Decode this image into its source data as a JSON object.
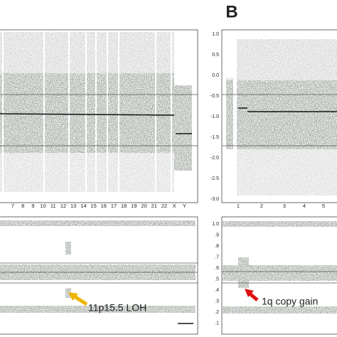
{
  "panel_label": "B",
  "top_left": {
    "x_labels": [
      "7",
      "8",
      "9",
      "10",
      "11",
      "12",
      "13",
      "14",
      "15",
      "16",
      "17",
      "18",
      "19",
      "20",
      "21",
      "22",
      "X",
      "Y"
    ]
  },
  "top_right": {
    "y_ticks": [
      "1.0",
      "0.5",
      "0.0",
      "-0.5",
      "-1.0",
      "-1.5",
      "-2.0",
      "-2.5",
      "-3.0"
    ],
    "x_labels": [
      "1",
      "2",
      "3",
      "4",
      "5"
    ]
  },
  "bottom_right": {
    "y_ticks": [
      "1.0",
      ".9",
      ".8",
      ".7",
      ".6",
      ".5",
      ".4",
      ".3",
      ".2",
      ".1"
    ]
  },
  "annotations": [
    "11p15.5 LOH",
    "1q copy gain"
  ]
}
